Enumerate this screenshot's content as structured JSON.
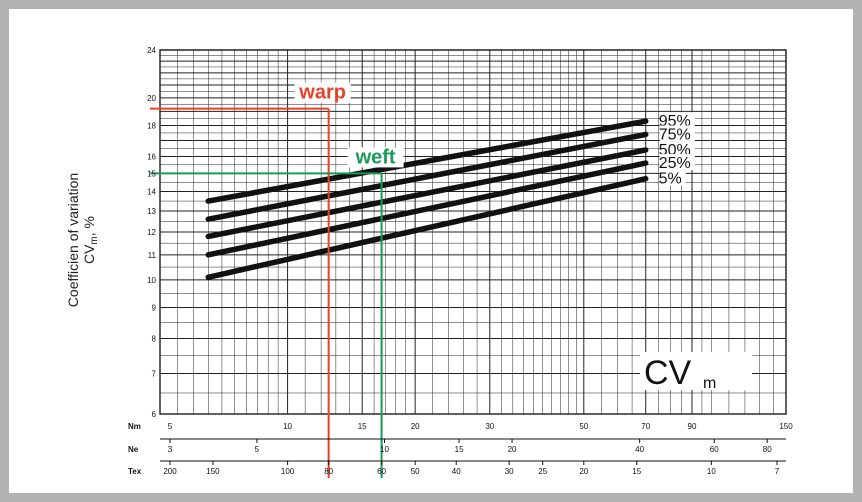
{
  "chart_data": {
    "type": "line",
    "title": "",
    "ylabel_line1": "Coefficien of variation",
    "ylabel_line2_main": "CV",
    "ylabel_line2_sub": "m",
    "ylabel_line2_suffix": ", %",
    "y_scale": "log",
    "ylim": [
      6,
      24
    ],
    "y_ticks": [
      "6",
      "7",
      "8",
      "9",
      "10",
      "11",
      "12",
      "13",
      "14",
      "15",
      "16",
      "18",
      "20",
      "24"
    ],
    "x_scale": "log",
    "x_unit": "Nm",
    "xlim_nm": [
      5,
      150
    ],
    "x_axes": [
      {
        "name": "Nm",
        "ticks": [
          "5",
          "10",
          "15",
          "20",
          "30",
          "50",
          "70",
          "90",
          "150"
        ]
      },
      {
        "name": "Ne",
        "ticks": [
          "3",
          "5",
          "10",
          "15",
          "20",
          "40",
          "60",
          "80"
        ]
      },
      {
        "name": "Tex",
        "ticks": [
          "200",
          "150",
          "100",
          "80",
          "60",
          "50",
          "40",
          "30",
          "25",
          "20",
          "15",
          "10",
          "7"
        ]
      }
    ],
    "series": [
      {
        "name": "95%",
        "x": [
          6.5,
          70
        ],
        "y": [
          13.5,
          18.3
        ]
      },
      {
        "name": "75%",
        "x": [
          6.5,
          70
        ],
        "y": [
          12.6,
          17.4
        ]
      },
      {
        "name": "50%",
        "x": [
          6.5,
          70
        ],
        "y": [
          11.8,
          16.4
        ]
      },
      {
        "name": "25%",
        "x": [
          6.5,
          70
        ],
        "y": [
          11.0,
          15.6
        ]
      },
      {
        "name": "5%",
        "x": [
          6.5,
          70
        ],
        "y": [
          10.1,
          14.7
        ]
      }
    ],
    "annotations": [
      {
        "label": "warp",
        "color": "#e8412a",
        "x_tex": 80,
        "y": 19.2
      },
      {
        "label": "weft",
        "color": "#1a9a5a",
        "x_tex": 60,
        "y": 15.0
      }
    ],
    "badge_main": "CV",
    "badge_sub": "m"
  }
}
